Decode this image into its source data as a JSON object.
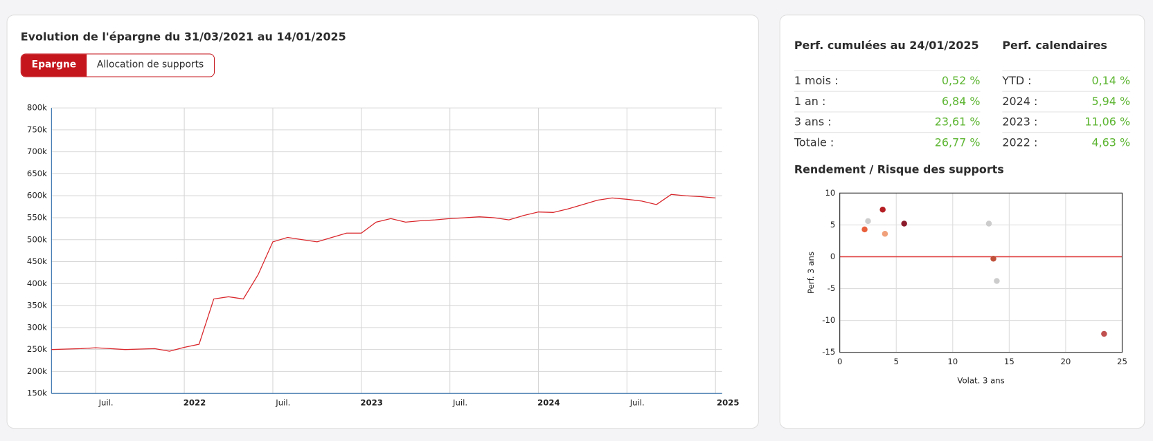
{
  "header": {
    "title": "Evolution de l'épargne du 31/03/2021 au 14/01/2025",
    "tabs": [
      "Epargne",
      "Allocation de supports"
    ]
  },
  "perf_cumulees": {
    "title": "Perf. cumulées au 24/01/2025",
    "rows": [
      [
        "1 mois :",
        "0,52 %"
      ],
      [
        "1 an :",
        "6,84 %"
      ],
      [
        "3 ans :",
        "23,61 %"
      ],
      [
        "Totale :",
        "26,77 %"
      ]
    ]
  },
  "perf_calendaires": {
    "title": "Perf. calendaires",
    "rows": [
      [
        "YTD :",
        "0,14 %"
      ],
      [
        "2024 :",
        "5,94 %"
      ],
      [
        "2023 :",
        "11,06 %"
      ],
      [
        "2022 :",
        "4,63 %"
      ]
    ]
  },
  "scatter_title": "Rendement / Risque des supports",
  "chart_data": [
    {
      "type": "line",
      "x": [
        "2021-04",
        "2021-05",
        "2021-06",
        "2021-07",
        "2021-08",
        "2021-09",
        "2021-10",
        "2021-11",
        "2021-12",
        "2022-01",
        "2022-02",
        "2022-03",
        "2022-04",
        "2022-05",
        "2022-06",
        "2022-07",
        "2022-08",
        "2022-09",
        "2022-10",
        "2022-11",
        "2022-12",
        "2023-01",
        "2023-02",
        "2023-03",
        "2023-04",
        "2023-05",
        "2023-06",
        "2023-07",
        "2023-08",
        "2023-09",
        "2023-10",
        "2023-11",
        "2023-12",
        "2024-01",
        "2024-02",
        "2024-03",
        "2024-04",
        "2024-05",
        "2024-06",
        "2024-07",
        "2024-08",
        "2024-09",
        "2024-10",
        "2024-11",
        "2024-12",
        "2025-01"
      ],
      "values": [
        250000,
        251000,
        252000,
        254000,
        252000,
        250000,
        251000,
        252000,
        246000,
        255000,
        262000,
        365000,
        370000,
        365000,
        420000,
        495000,
        505000,
        500000,
        495000,
        505000,
        515000,
        515000,
        540000,
        548000,
        540000,
        543000,
        545000,
        548000,
        550000,
        552000,
        550000,
        545000,
        555000,
        563000,
        562000,
        570000,
        580000,
        590000,
        595000,
        592000,
        588000,
        580000,
        603000,
        600000,
        598000,
        595000
      ],
      "color": "#d9262b",
      "xlim": [
        "2021-04",
        "2025-01"
      ],
      "xticks": [
        {
          "value": "2021-07",
          "label": "Juil."
        },
        {
          "value": "2022-01",
          "label": "2022"
        },
        {
          "value": "2022-07",
          "label": "Juil."
        },
        {
          "value": "2023-01",
          "label": "2023"
        },
        {
          "value": "2023-07",
          "label": "Juil."
        },
        {
          "value": "2024-01",
          "label": "2024"
        },
        {
          "value": "2024-07",
          "label": "Juil."
        },
        {
          "value": "2025-01",
          "label": "2025"
        }
      ],
      "ylim": [
        150000,
        800000
      ],
      "yticks": [
        {
          "value": 150000,
          "label": "150k"
        },
        {
          "value": 200000,
          "label": "200k"
        },
        {
          "value": 250000,
          "label": "250k"
        },
        {
          "value": 300000,
          "label": "300k"
        },
        {
          "value": 350000,
          "label": "350k"
        },
        {
          "value": 400000,
          "label": "400k"
        },
        {
          "value": 450000,
          "label": "450k"
        },
        {
          "value": 500000,
          "label": "500k"
        },
        {
          "value": 550000,
          "label": "550k"
        },
        {
          "value": 600000,
          "label": "600k"
        },
        {
          "value": 650000,
          "label": "650k"
        },
        {
          "value": 700000,
          "label": "700k"
        },
        {
          "value": 750000,
          "label": "750k"
        },
        {
          "value": 800000,
          "label": "800k"
        }
      ],
      "grid": true
    },
    {
      "type": "scatter",
      "x_label": "Volat. 3 ans",
      "y_label": "Perf. 3 ans",
      "x": [
        2.5,
        2.2,
        3.8,
        4.0,
        5.7,
        13.2,
        13.6,
        13.9,
        23.4
      ],
      "y": [
        5.6,
        4.3,
        7.4,
        3.6,
        5.2,
        5.2,
        -0.3,
        -3.8,
        -12.1
      ],
      "colors": [
        "#cccccc",
        "#e8603c",
        "#b51f24",
        "#f0a07a",
        "#8b1a2b",
        "#cccccc",
        "#c0503a",
        "#cccccc",
        "#c05050"
      ],
      "xlim": [
        0,
        25
      ],
      "xticks": [
        0,
        5,
        10,
        15,
        20,
        25
      ],
      "ylim": [
        -15,
        10
      ],
      "yticks": [
        -15,
        -10,
        -5,
        0,
        5,
        10
      ],
      "grid": true,
      "zero_line": true
    }
  ]
}
